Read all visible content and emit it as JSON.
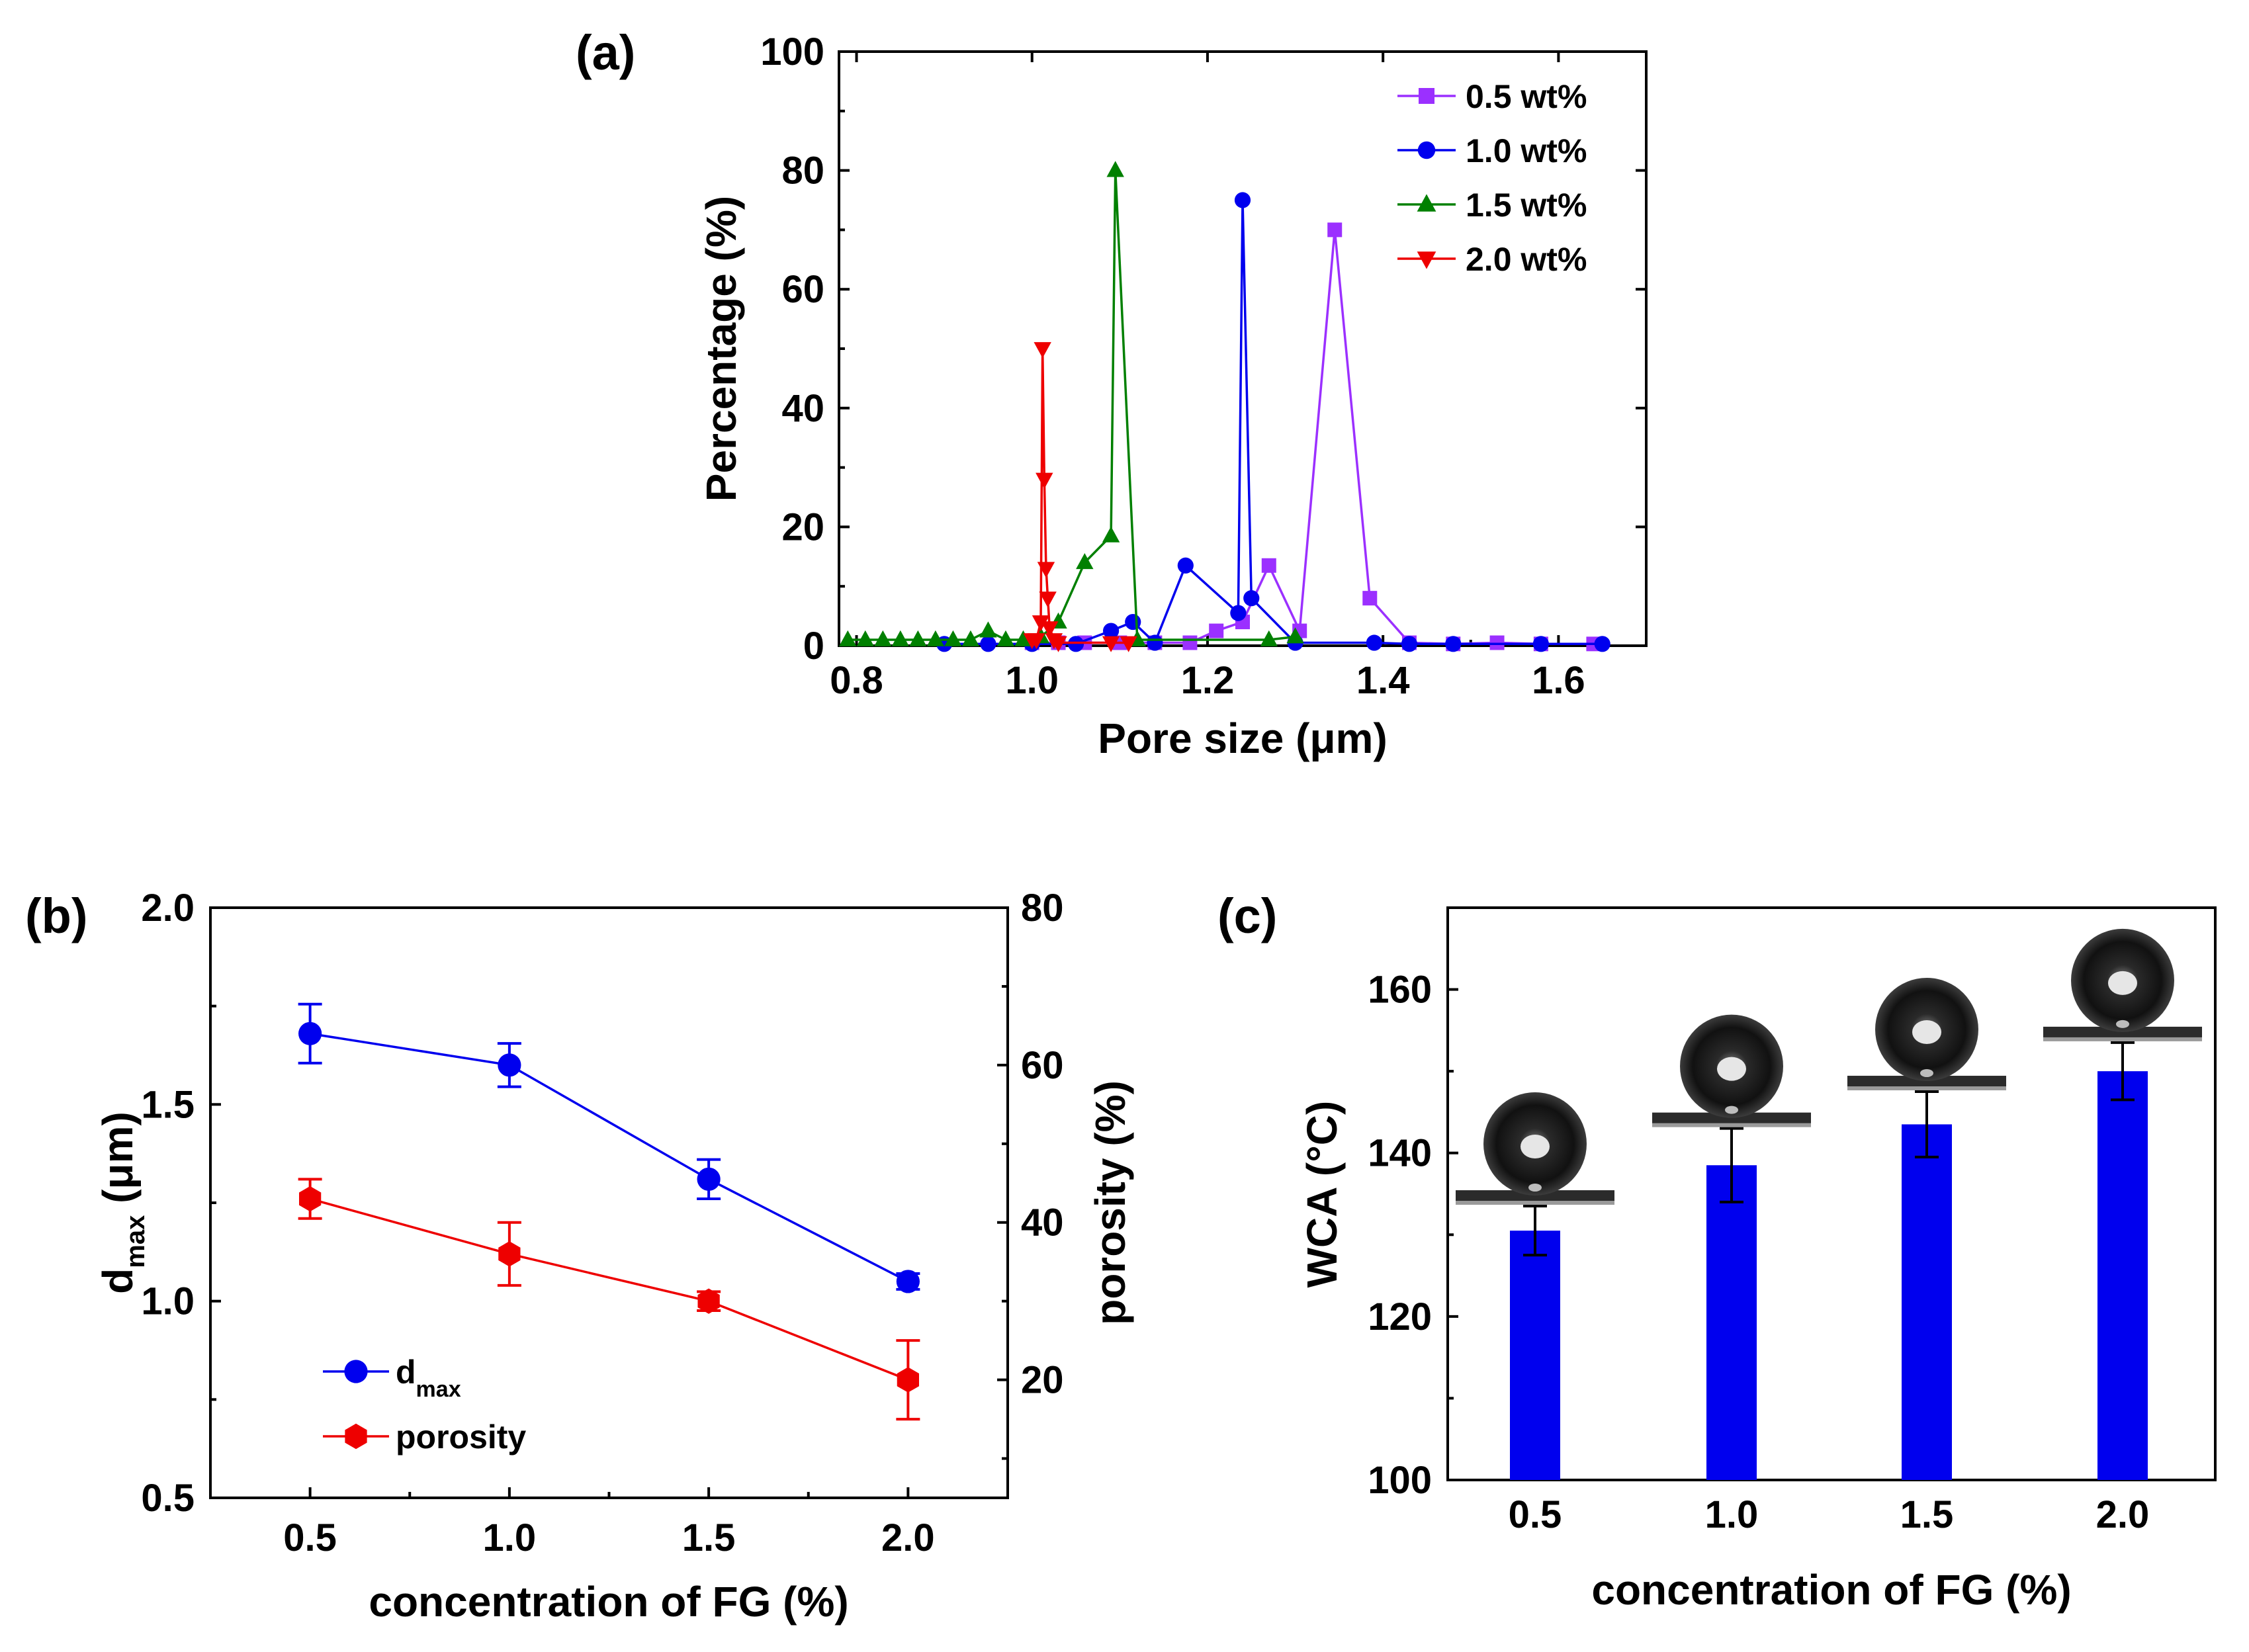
{
  "figure": {
    "panels": [
      "(a)",
      "(b)",
      "(c)"
    ]
  },
  "chart_data": [
    {
      "id": "a",
      "type": "line",
      "panel_label": "(a)",
      "xlabel": "Pore size (μm)",
      "ylabel": "Percentage (%)",
      "xlim": [
        0.78,
        1.7
      ],
      "ylim": [
        0,
        100
      ],
      "xticks": [
        0.8,
        1.0,
        1.2,
        1.4,
        1.6
      ],
      "xtick_labels": [
        "0.8",
        "1.0",
        "1.2",
        "1.4",
        "1.6"
      ],
      "yticks": [
        0,
        20,
        40,
        60,
        80,
        100
      ],
      "ytick_labels": [
        "0",
        "20",
        "40",
        "60",
        "80",
        "100"
      ],
      "legend_position": "top-right",
      "series": [
        {
          "name": "0.5 wt%",
          "color": "#9b30ff",
          "marker": "square",
          "x": [
            1.0,
            1.03,
            1.06,
            1.1,
            1.14,
            1.18,
            1.21,
            1.24,
            1.27,
            1.305,
            1.345,
            1.385,
            1.43,
            1.48,
            1.53,
            1.58,
            1.64
          ],
          "y": [
            0.5,
            0.5,
            0.5,
            0.5,
            0.5,
            0.5,
            2.5,
            4,
            13.5,
            2.5,
            70,
            8,
            0.5,
            0.3,
            0.5,
            0.3,
            0.3
          ]
        },
        {
          "name": "1.0 wt%",
          "color": "#0000ee",
          "marker": "circle",
          "x": [
            0.9,
            0.95,
            1.0,
            1.05,
            1.09,
            1.115,
            1.14,
            1.175,
            1.235,
            1.24,
            1.25,
            1.3,
            1.39,
            1.43,
            1.48,
            1.58,
            1.65
          ],
          "y": [
            0.3,
            0.3,
            0.3,
            0.3,
            2.5,
            4,
            0.5,
            13.5,
            5.5,
            75,
            8,
            0.5,
            0.5,
            0.3,
            0.3,
            0.3,
            0.3
          ]
        },
        {
          "name": "1.5 wt%",
          "color": "#008000",
          "marker": "triangle-up",
          "x": [
            0.79,
            0.81,
            0.83,
            0.85,
            0.87,
            0.89,
            0.91,
            0.93,
            0.95,
            0.97,
            0.99,
            1.01,
            1.03,
            1.06,
            1.09,
            1.095,
            1.12,
            1.27,
            1.3
          ],
          "y": [
            1,
            1,
            1,
            1,
            1,
            1,
            1,
            1,
            2.5,
            1,
            1,
            1.5,
            4,
            14,
            18.5,
            80,
            1,
            1,
            1.5
          ]
        },
        {
          "name": "2.0 wt%",
          "color": "#ee0000",
          "marker": "triangle-down",
          "x": [
            1.0,
            1.005,
            1.01,
            1.012,
            1.014,
            1.016,
            1.018,
            1.02,
            1.025,
            1.03,
            1.09,
            1.11
          ],
          "y": [
            1,
            1,
            4,
            50,
            28,
            13,
            8,
            3,
            1,
            0.5,
            0.5,
            0.5
          ]
        }
      ]
    },
    {
      "id": "b",
      "type": "line",
      "panel_label": "(b)",
      "xlabel": "concentration of FG (%)",
      "ylabel_left_main": "d",
      "ylabel_left_sub": "max",
      "ylabel_left_unit": " (μm)",
      "ylabel_right": "porosity (%)",
      "categories": [
        0.5,
        1.0,
        1.5,
        2.0
      ],
      "xtick_labels": [
        "0.5",
        "1.0",
        "1.5",
        "2.0"
      ],
      "xlim": [
        0.25,
        2.25
      ],
      "ylim_left": [
        0.5,
        2.0
      ],
      "yticks_left": [
        0.5,
        1.0,
        1.5,
        2.0
      ],
      "ytick_labels_left": [
        "0.5",
        "1.0",
        "1.5",
        "2.0"
      ],
      "ylim_right": [
        5,
        80
      ],
      "yticks_right": [
        20,
        40,
        60,
        80
      ],
      "ytick_labels_right": [
        "20",
        "40",
        "60",
        "80"
      ],
      "legend_position": "bottom-left",
      "series": [
        {
          "name_main": "d",
          "name_sub": "max",
          "axis": "left",
          "color": "#0000ee",
          "marker": "circle",
          "values": [
            1.68,
            1.6,
            1.31,
            1.05
          ],
          "errors": [
            0.075,
            0.055,
            0.05,
            0.02
          ]
        },
        {
          "name_main": "porosity",
          "name_sub": "",
          "axis": "right",
          "color": "#ee0000",
          "marker": "hexagon",
          "values": [
            43,
            36,
            30,
            20
          ],
          "errors": [
            2.5,
            4,
            1.2,
            5
          ]
        }
      ]
    },
    {
      "id": "c",
      "type": "bar",
      "panel_label": "(c)",
      "xlabel": "concentration of FG (%)",
      "ylabel": "WCA (°C)",
      "categories": [
        "0.5",
        "1.0",
        "1.5",
        "2.0"
      ],
      "values": [
        130.5,
        138.5,
        143.5,
        150
      ],
      "errors": [
        3,
        4.5,
        4,
        3.5
      ],
      "bar_color": "#0000ee",
      "ylim": [
        100,
        170
      ],
      "yticks": [
        100,
        120,
        140,
        160
      ],
      "ytick_labels": [
        "100",
        "120",
        "140",
        "160"
      ],
      "inset_images": [
        "droplet-photo",
        "droplet-photo",
        "droplet-photo",
        "droplet-photo"
      ]
    }
  ]
}
